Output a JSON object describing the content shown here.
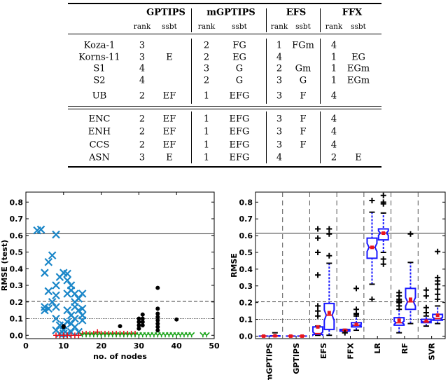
{
  "table": {
    "methods": [
      "GPTIPS",
      "mGPTIPS",
      "EFS",
      "FFX"
    ],
    "subheaders": [
      "rank",
      "ssbt"
    ],
    "groups": [
      [
        {
          "name": "Koza-1",
          "cells": [
            "3",
            "",
            "2",
            "FG",
            "1",
            "FGm",
            "4",
            ""
          ]
        },
        {
          "name": "Korns-11",
          "cells": [
            "3",
            "E",
            "2",
            "EG",
            "4",
            "",
            "1",
            "EG"
          ]
        },
        {
          "name": "S1",
          "cells": [
            "4",
            "",
            "3",
            "G",
            "2",
            "Gm",
            "1",
            "EGm"
          ]
        },
        {
          "name": "S2",
          "cells": [
            "4",
            "",
            "2",
            "G",
            "3",
            "G",
            "1",
            "EGm"
          ]
        },
        {
          "name": "UB",
          "cells": [
            "2",
            "EF",
            "1",
            "EFG",
            "3",
            "F",
            "4",
            ""
          ]
        }
      ],
      [
        {
          "name": "ENC",
          "cells": [
            "2",
            "EF",
            "1",
            "EFG",
            "3",
            "F",
            "4",
            ""
          ]
        },
        {
          "name": "ENH",
          "cells": [
            "2",
            "EF",
            "1",
            "EFG",
            "3",
            "F",
            "4",
            ""
          ]
        },
        {
          "name": "CCS",
          "cells": [
            "2",
            "EF",
            "1",
            "EFG",
            "3",
            "F",
            "4",
            ""
          ]
        },
        {
          "name": "ASN",
          "cells": [
            "3",
            "E",
            "1",
            "EFG",
            "4",
            "",
            "2",
            "E"
          ]
        }
      ]
    ]
  },
  "chart_data": [
    {
      "type": "scatter",
      "xlabel": "no. of nodes",
      "ylabel": "RMSE (test)",
      "xlim": [
        0,
        50
      ],
      "ylim": [
        -0.02,
        0.86
      ],
      "xticks": [
        "0",
        "10",
        "20",
        "30",
        "40",
        "50"
      ],
      "yticks": [
        "0.0",
        "0.1",
        "0.2",
        "0.3",
        "0.4",
        "0.5",
        "0.6",
        "0.7",
        "0.8"
      ],
      "hlines": [
        {
          "y": 0.61,
          "style": "solid"
        },
        {
          "y": 0.205,
          "style": "dashed"
        },
        {
          "y": 0.1,
          "style": "dotted"
        }
      ],
      "series": [
        {
          "marker": "x",
          "color": "#1a86c8",
          "points": [
            [
              3,
              0.63
            ],
            [
              4,
              0.635
            ],
            [
              8,
              0.605
            ],
            [
              7,
              0.48
            ],
            [
              6,
              0.44
            ],
            [
              5,
              0.375
            ],
            [
              6,
              0.265
            ],
            [
              5,
              0.17
            ],
            [
              5,
              0.15
            ],
            [
              6,
              0.16
            ],
            [
              7,
              0.2
            ],
            [
              8,
              0.3
            ],
            [
              8,
              0.24
            ],
            [
              8,
              0.17
            ],
            [
              8,
              0.1
            ],
            [
              8,
              0.03
            ],
            [
              9,
              0.35
            ],
            [
              9,
              0.06
            ],
            [
              10,
              0.375
            ],
            [
              10,
              0.03
            ],
            [
              11,
              0.37
            ],
            [
              11,
              0.33
            ],
            [
              11,
              0.25
            ],
            [
              11,
              0.15
            ],
            [
              11,
              0.08
            ],
            [
              12,
              0.3
            ],
            [
              12,
              0.27
            ],
            [
              12,
              0.12
            ],
            [
              12,
              0.02
            ],
            [
              13,
              0.25
            ],
            [
              13,
              0.2
            ],
            [
              13,
              0.17
            ],
            [
              13,
              0.05
            ],
            [
              14,
              0.22
            ],
            [
              14,
              0.15
            ],
            [
              14,
              0.02
            ],
            [
              15,
              0.25
            ],
            [
              15,
              0.16
            ],
            [
              15,
              0.12
            ],
            [
              15,
              0.09
            ],
            [
              9,
              0.01
            ],
            [
              10,
              0.01
            ],
            [
              11,
              0.01
            ],
            [
              10,
              0.06
            ],
            [
              12,
              0.07
            ],
            [
              13,
              0.1
            ]
          ]
        },
        {
          "marker": "+",
          "color": "#e8141c",
          "points": [
            [
              8,
              0.0
            ],
            [
              9,
              0.0
            ],
            [
              10,
              0.0
            ],
            [
              11,
              0.0
            ],
            [
              12,
              0.0
            ],
            [
              13,
              0.0
            ],
            [
              14,
              0.0
            ],
            [
              15,
              0.01
            ],
            [
              16,
              0.01
            ],
            [
              17,
              0.01
            ],
            [
              18,
              0.01
            ],
            [
              19,
              0.02
            ],
            [
              20,
              0.01
            ],
            [
              21,
              0.01
            ],
            [
              22,
              0.01
            ],
            [
              23,
              0.01
            ],
            [
              24,
              0.01
            ],
            [
              25,
              0.01
            ],
            [
              26,
              0.01
            ],
            [
              27,
              0.01
            ],
            [
              28,
              0.01
            ],
            [
              29,
              0.01
            ]
          ]
        },
        {
          "marker": "Y",
          "color": "#19a319",
          "points": [
            [
              15,
              0
            ],
            [
              16,
              0
            ],
            [
              17,
              0
            ],
            [
              18,
              0
            ],
            [
              19,
              0
            ],
            [
              20,
              0
            ],
            [
              21,
              0
            ],
            [
              22,
              0
            ],
            [
              23,
              0
            ],
            [
              24,
              0
            ],
            [
              25,
              0
            ],
            [
              26,
              0
            ],
            [
              27,
              0
            ],
            [
              28,
              0
            ],
            [
              29,
              0
            ],
            [
              30,
              0
            ],
            [
              31,
              0
            ],
            [
              32,
              0
            ],
            [
              33,
              0
            ],
            [
              34,
              0
            ],
            [
              35,
              0
            ],
            [
              36,
              0
            ],
            [
              37,
              0
            ],
            [
              38,
              0
            ],
            [
              39,
              0
            ],
            [
              40,
              0
            ],
            [
              41,
              0
            ],
            [
              42,
              0
            ],
            [
              43,
              0
            ],
            [
              44,
              0
            ],
            [
              47,
              0
            ],
            [
              48,
              0
            ]
          ]
        },
        {
          "marker": "o",
          "color": "#000000",
          "points": [
            [
              10,
              0.055
            ],
            [
              10,
              0.05
            ],
            [
              25,
              0.055
            ],
            [
              30,
              0.04
            ],
            [
              30,
              0.06
            ],
            [
              30,
              0.08
            ],
            [
              30,
              0.1
            ],
            [
              31,
              0.06
            ],
            [
              31,
              0.08
            ],
            [
              31,
              0.1
            ],
            [
              31,
              0.125
            ],
            [
              35,
              0.03
            ],
            [
              35,
              0.05
            ],
            [
              35,
              0.07
            ],
            [
              35,
              0.09
            ],
            [
              35,
              0.11
            ],
            [
              35,
              0.13
            ],
            [
              35,
              0.16
            ],
            [
              35,
              0.285
            ],
            [
              40,
              0.095
            ]
          ]
        }
      ]
    },
    {
      "type": "box",
      "ylabel": "RMSE",
      "ylim": [
        -0.015,
        0.86
      ],
      "yticks": [
        "0.0",
        "0.1",
        "0.2",
        "0.3",
        "0.4",
        "0.5",
        "0.6",
        "0.7",
        "0.8"
      ],
      "categories": [
        "mGPTIPS",
        "GPTIPS",
        "EFS",
        "FFX",
        "LR",
        "RF",
        "SVR"
      ],
      "hlines": [
        {
          "y": 0.615,
          "style": "solid"
        },
        {
          "y": 0.205,
          "style": "dashed"
        },
        {
          "y": 0.1,
          "style": "dotted"
        }
      ],
      "colors": {
        "box": "#1a1aff",
        "median": "#e8141c",
        "mean": "#e8141c",
        "outlier": "#000000"
      },
      "boxes": [
        [
          {
            "q1": 0,
            "median": 0,
            "q3": 0,
            "mean": 0,
            "whisker_low": 0,
            "whisker_high": 0,
            "outliers": []
          },
          {
            "q1": 0,
            "median": 0,
            "q3": 0.002,
            "mean": 0.002,
            "whisker_low": 0,
            "whisker_high": 0.02,
            "outliers": []
          }
        ],
        [
          {
            "q1": 0,
            "median": 0,
            "q3": 0,
            "mean": 0,
            "whisker_low": 0,
            "whisker_high": 0,
            "outliers": []
          },
          {
            "q1": 0,
            "median": 0,
            "q3": 0,
            "mean": 0,
            "whisker_low": 0,
            "whisker_high": 0,
            "outliers": []
          }
        ],
        [
          {
            "q1": 0.01,
            "median": 0.015,
            "q3": 0.055,
            "mean": 0.055,
            "whisker_low": 0.005,
            "whisker_high": 0.06,
            "outliers": [
              0.64,
              0.585,
              0.5,
              0.365,
              0.18,
              0.15,
              0.12
            ]
          },
          {
            "q1": 0.04,
            "median": 0.125,
            "q3": 0.195,
            "mean": 0.14,
            "whisker_low": 0.005,
            "whisker_high": 0.435,
            "outliers": [
              0.64,
              0.61,
              0.48
            ]
          }
        ],
        [
          {
            "q1": 0.03,
            "median": 0.035,
            "q3": 0.04,
            "mean": 0.035,
            "whisker_low": 0.02,
            "whisker_high": 0.04,
            "outliers": [
              0.02
            ]
          },
          {
            "q1": 0.055,
            "median": 0.065,
            "q3": 0.08,
            "mean": 0.07,
            "whisker_low": 0.035,
            "whisker_high": 0.12,
            "outliers": [
              0.285,
              0.16,
              0.135,
              0.13
            ]
          }
        ],
        [
          {
            "q1": 0.465,
            "median": 0.53,
            "q3": 0.585,
            "mean": 0.53,
            "whisker_low": 0.31,
            "whisker_high": 0.74,
            "outliers": [
              0.81,
              0.22
            ]
          },
          {
            "q1": 0.575,
            "median": 0.615,
            "q3": 0.64,
            "mean": 0.615,
            "whisker_low": 0.5,
            "whisker_high": 0.735,
            "outliers": [
              0.84,
              0.8,
              0.79,
              0.46,
              0.43
            ]
          }
        ],
        [
          {
            "q1": 0.065,
            "median": 0.08,
            "q3": 0.11,
            "mean": 0.095,
            "whisker_low": 0.02,
            "whisker_high": 0.16,
            "outliers": [
              0.26,
              0.24,
              0.22,
              0.21,
              0.2,
              0.18
            ]
          },
          {
            "q1": 0.16,
            "median": 0.205,
            "q3": 0.285,
            "mean": 0.22,
            "whisker_low": 0.075,
            "whisker_high": 0.44,
            "outliers": [
              0.61
            ]
          }
        ],
        [
          {
            "q1": 0.08,
            "median": 0.085,
            "q3": 0.1,
            "mean": 0.09,
            "whisker_low": 0.06,
            "whisker_high": 0.12,
            "outliers": [
              0.275,
              0.24,
              0.17,
              0.14
            ]
          },
          {
            "q1": 0.095,
            "median": 0.105,
            "q3": 0.13,
            "mean": 0.125,
            "whisker_low": 0.075,
            "whisker_high": 0.18,
            "outliers": [
              0.505,
              0.35,
              0.33,
              0.31,
              0.28,
              0.25,
              0.22
            ]
          }
        ]
      ]
    }
  ]
}
